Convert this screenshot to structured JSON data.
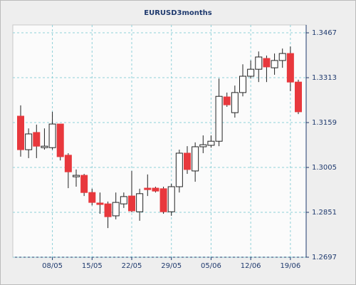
{
  "chart_data": {
    "type": "candlestick",
    "title": "EURUSD3months",
    "categories": [
      null,
      null,
      null,
      null,
      "08/05",
      null,
      null,
      null,
      null,
      "15/05",
      null,
      null,
      null,
      null,
      "22/05",
      null,
      null,
      null,
      null,
      "29/05",
      null,
      null,
      null,
      null,
      "05/06",
      null,
      null,
      null,
      null,
      "12/06",
      null,
      null,
      null,
      null,
      "19/06",
      null
    ],
    "open": [
      1.3181,
      1.3066,
      1.3125,
      1.3073,
      1.3073,
      1.3154,
      1.3047,
      1.2973,
      1.2978,
      1.2919,
      1.2883,
      1.288,
      1.2839,
      1.288,
      1.2907,
      1.2853,
      1.2934,
      1.2934,
      1.2932,
      1.2853,
      1.2939,
      1.3054,
      1.2993,
      1.3076,
      1.3081,
      1.3095,
      1.3247,
      1.3193,
      1.3262,
      1.3318,
      1.3342,
      1.3379,
      1.3347,
      1.3372,
      1.3396,
      1.3298
    ],
    "high": [
      1.3218,
      1.3139,
      1.3152,
      1.3139,
      1.3196,
      1.3154,
      1.3054,
      1.2998,
      1.2983,
      1.2932,
      1.2919,
      1.2888,
      1.2919,
      1.2919,
      1.2993,
      1.2932,
      1.2981,
      1.2939,
      1.2939,
      1.2949,
      1.3066,
      1.3078,
      1.3091,
      1.3115,
      1.3115,
      1.331,
      1.3262,
      1.3286,
      1.3359,
      1.3372,
      1.3403,
      1.3389,
      1.3396,
      1.3413,
      1.342,
      1.3306
    ],
    "low": [
      1.3042,
      1.3037,
      1.3037,
      1.3066,
      1.3066,
      1.3029,
      1.2934,
      1.2939,
      1.2907,
      1.2875,
      1.2846,
      1.2797,
      1.2827,
      1.2866,
      1.2851,
      1.2822,
      1.2907,
      1.2919,
      1.2846,
      1.2839,
      1.2919,
      1.2983,
      1.2956,
      1.3054,
      1.3073,
      1.3078,
      1.3213,
      1.3176,
      1.3249,
      1.331,
      1.3298,
      1.3298,
      1.3323,
      1.3347,
      1.3267,
      1.3188
    ],
    "close": [
      1.3066,
      1.312,
      1.3078,
      1.3078,
      1.3154,
      1.3042,
      1.299,
      1.2978,
      1.2919,
      1.2885,
      1.2878,
      1.2836,
      1.2885,
      1.2905,
      1.2856,
      1.2915,
      1.2929,
      1.2924,
      1.2853,
      1.2939,
      1.3054,
      1.2998,
      1.3076,
      1.3083,
      1.3095,
      1.3249,
      1.322,
      1.3262,
      1.3318,
      1.3342,
      1.3384,
      1.335,
      1.3372,
      1.3396,
      1.3298,
      1.3196
    ],
    "up_color": "#ffffff",
    "down_color": "#e8383d",
    "ylim": [
      1.2697,
      1.3494
    ],
    "yticks": [
      1.2697,
      1.2851,
      1.3005,
      1.3159,
      1.3313,
      1.3467
    ],
    "y_axis_side": "right",
    "grid": true
  }
}
